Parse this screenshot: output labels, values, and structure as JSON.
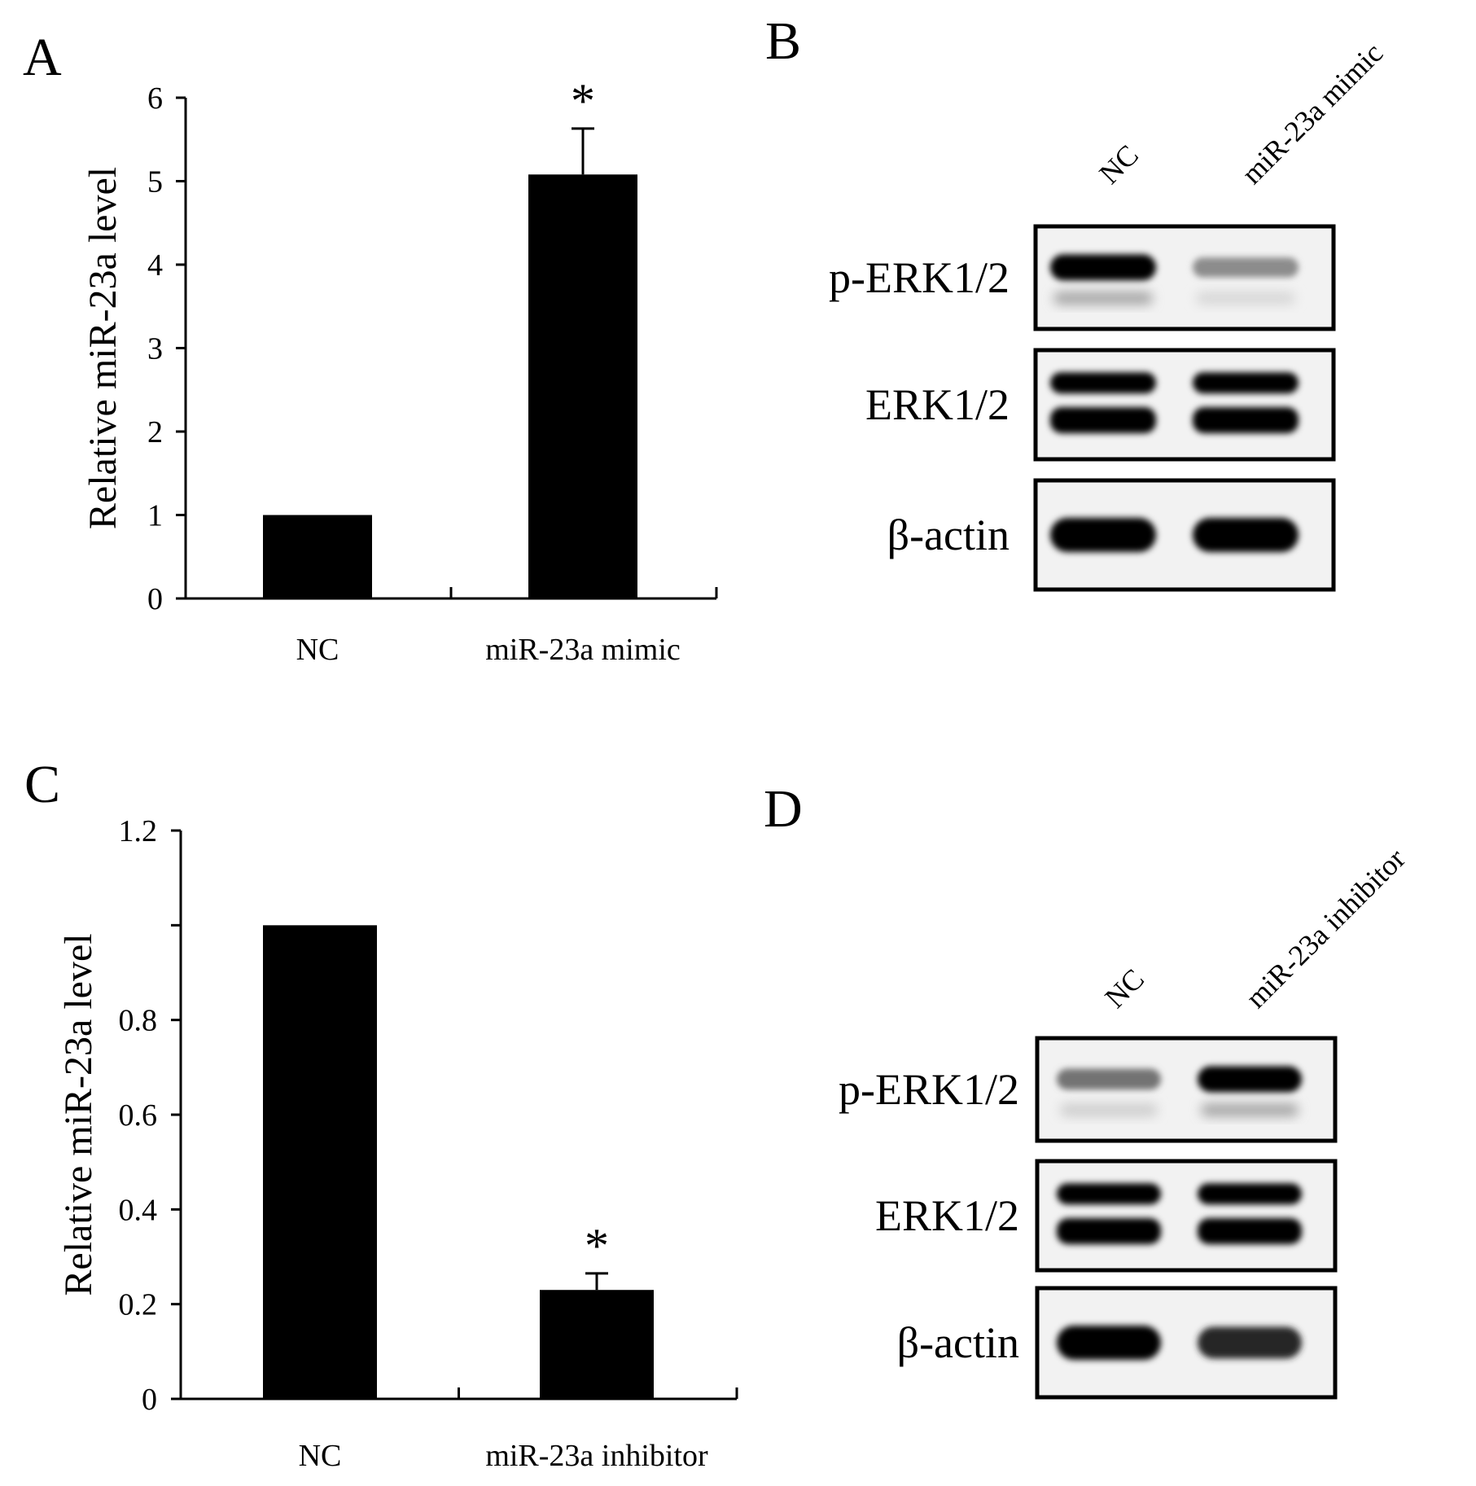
{
  "panels": {
    "A": "A",
    "B": "B",
    "C": "C",
    "D": "D"
  },
  "chart_data": [
    {
      "type": "bar",
      "panel": "A",
      "categories": [
        "NC",
        "miR-23a mimic"
      ],
      "values": [
        1.0,
        5.08
      ],
      "error": [
        0.0,
        0.55
      ],
      "annotations": [
        "",
        "*"
      ],
      "title": "",
      "xlabel": "",
      "ylabel": "Relative miR-23a level",
      "ylim": [
        0,
        6
      ],
      "yticks": [
        0,
        1,
        2,
        3,
        4,
        5,
        6
      ],
      "ytick_labels": [
        "0",
        "1",
        "2",
        "3",
        "4",
        "5",
        "6"
      ],
      "grid": false,
      "color": "#000000"
    },
    {
      "type": "bar",
      "panel": "C",
      "categories": [
        "NC",
        "miR-23a inhibitor"
      ],
      "values": [
        1.0,
        0.23
      ],
      "error": [
        0.0,
        0.035
      ],
      "annotations": [
        "",
        "*"
      ],
      "title": "",
      "xlabel": "",
      "ylabel": "Relative miR-23a level",
      "ylim": [
        0,
        1.2
      ],
      "yticks": [
        0,
        0.2,
        0.4,
        0.6,
        0.8,
        1.0,
        1.2
      ],
      "ytick_labels": [
        "0",
        "0.2",
        "0.4",
        "0.6",
        "0.8",
        "",
        "1.2"
      ],
      "grid": false,
      "color": "#000000"
    }
  ],
  "blots": [
    {
      "panel": "B",
      "lanes": [
        "NC",
        "miR-23a mimic"
      ],
      "rows": [
        {
          "label": "p-ERK1/2",
          "intensity": [
            1.0,
            0.45
          ]
        },
        {
          "label": "ERK1/2",
          "intensity": [
            1.0,
            1.0
          ]
        },
        {
          "label": "β-actin",
          "intensity": [
            1.0,
            1.0
          ]
        }
      ]
    },
    {
      "panel": "D",
      "lanes": [
        "NC",
        "miR-23a inhibitor"
      ],
      "rows": [
        {
          "label": "p-ERK1/2",
          "intensity": [
            0.55,
            1.0
          ]
        },
        {
          "label": "ERK1/2",
          "intensity": [
            1.0,
            1.0
          ]
        },
        {
          "label": "β-actin",
          "intensity": [
            1.0,
            0.85
          ]
        }
      ]
    }
  ]
}
